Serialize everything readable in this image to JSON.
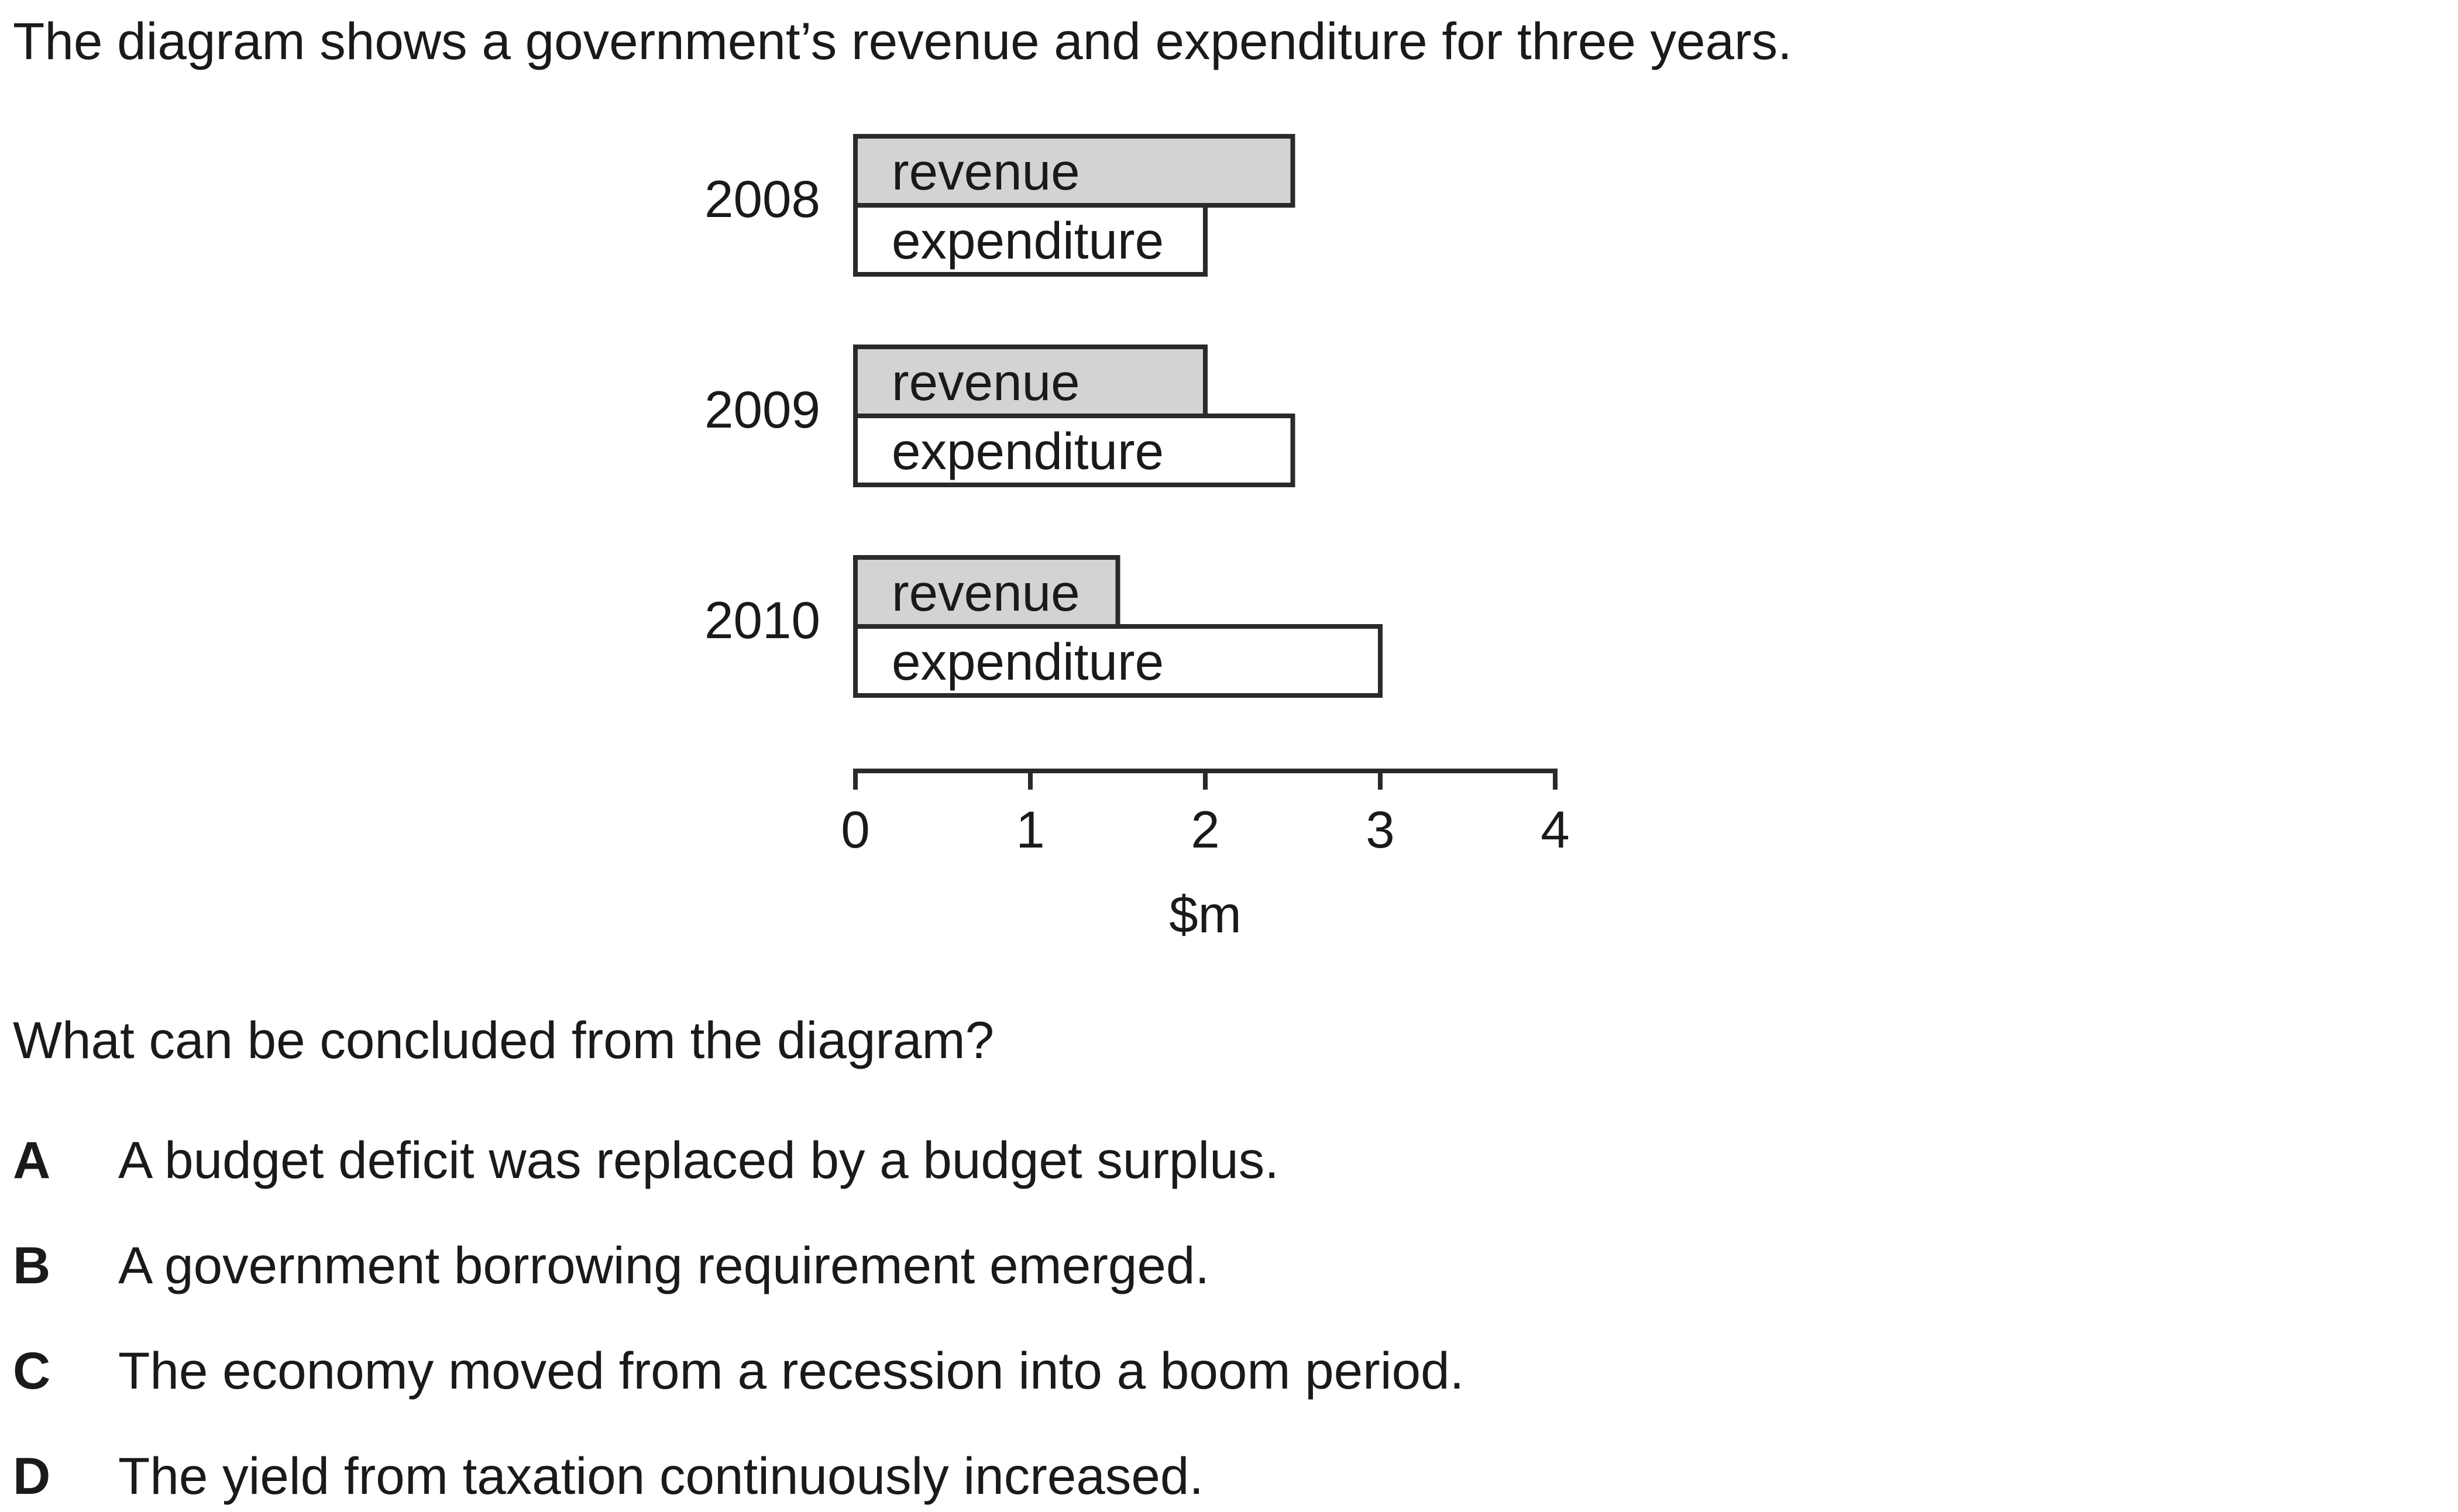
{
  "intro": "The diagram shows a government’s revenue and expenditure for three years.",
  "question": "What can be concluded from the diagram?",
  "options": [
    {
      "letter": "A",
      "text": "A budget deficit was replaced by a budget surplus."
    },
    {
      "letter": "B",
      "text": "A government borrowing requirement emerged."
    },
    {
      "letter": "C",
      "text": "The economy moved from a recession into a boom period."
    },
    {
      "letter": "D",
      "text": "The yield from taxation continuously increased."
    }
  ],
  "chart_data": {
    "type": "bar",
    "orientation": "horizontal",
    "categories": [
      "2008",
      "2009",
      "2010"
    ],
    "series": [
      {
        "name": "revenue",
        "values": [
          2.5,
          2.0,
          1.5
        ],
        "color": "#d3d3d3"
      },
      {
        "name": "expenditure",
        "values": [
          2.0,
          2.5,
          3.0
        ],
        "color": "#ffffff"
      }
    ],
    "xlabel": "$m",
    "ylabel": "",
    "xlim": [
      0,
      4
    ],
    "xticks": [
      "0",
      "1",
      "2",
      "3",
      "4"
    ],
    "grid": false,
    "legend": "none (series names printed inside bars)"
  }
}
